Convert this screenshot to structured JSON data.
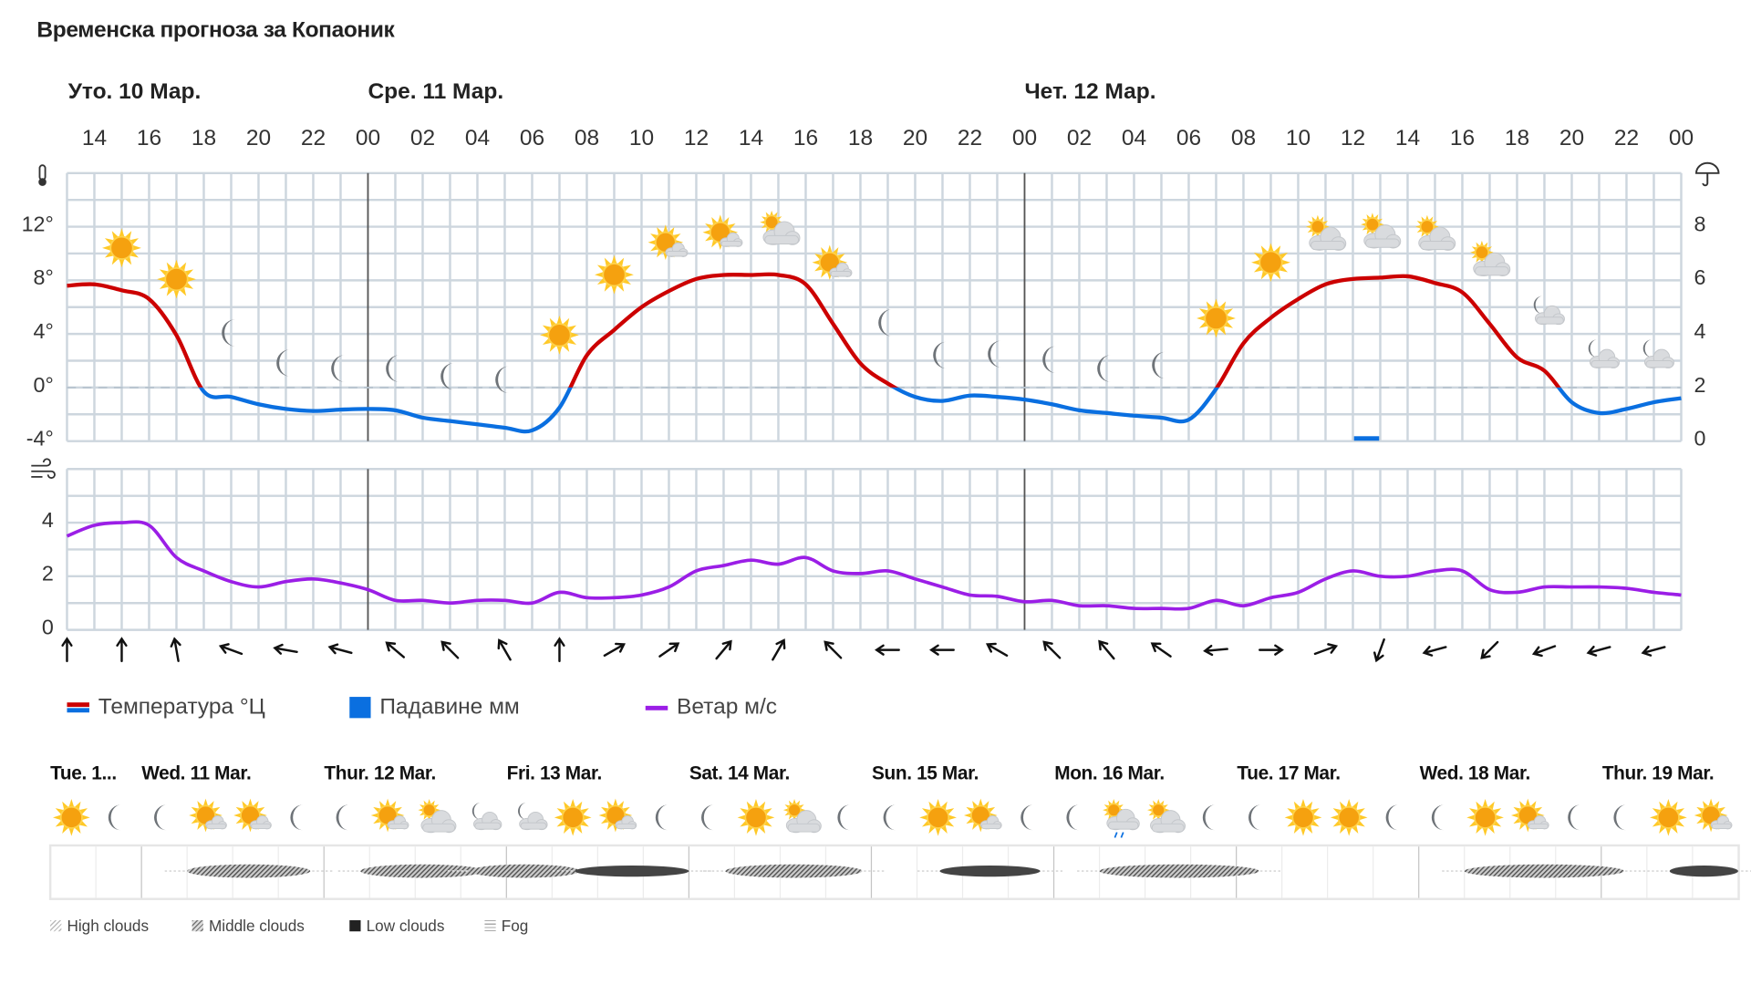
{
  "title": "Временска прогноза за Копаоник",
  "days": [
    {
      "label": "Уто. 10 Мар.",
      "start_hour_index": 0
    },
    {
      "label": "Сре. 11 Мар.",
      "start_hour_index": 11
    },
    {
      "label": "Чет. 12 Мар.",
      "start_hour_index": 35
    }
  ],
  "hour_labels": [
    "14",
    "16",
    "18",
    "20",
    "22",
    "00",
    "02",
    "04",
    "06",
    "08",
    "10",
    "12",
    "14",
    "16",
    "18",
    "20",
    "22",
    "00",
    "02",
    "04",
    "06",
    "08",
    "10",
    "12",
    "14",
    "16",
    "18",
    "20",
    "22",
    "00"
  ],
  "temp_axis": {
    "labels": [
      "12°",
      "8°",
      "4°",
      "0°",
      "-4°"
    ],
    "values": [
      12,
      8,
      4,
      0,
      -4
    ],
    "range": [
      -4,
      16
    ],
    "icon": "thermometer-icon"
  },
  "precip_axis": {
    "labels": [
      "8",
      "6",
      "4",
      "2",
      "0"
    ],
    "values": [
      8,
      6,
      4,
      2,
      0
    ],
    "range": [
      0,
      10
    ],
    "icon": "umbrella-icon"
  },
  "wind_axis": {
    "labels": [
      "4",
      "2",
      "0"
    ],
    "values": [
      4,
      2,
      0
    ],
    "range": [
      0,
      6
    ],
    "icon": "wind-icon"
  },
  "colors": {
    "temp_positive": "#cc0000",
    "temp_negative": "#0a6fe0",
    "precip": "#0a6fe0",
    "wind": "#9b1ee6",
    "grid": "#cdd6de",
    "day_line": "#555555"
  },
  "chart_data": {
    "type": "line",
    "x_start": "Уто. 10 Мар. 13:00",
    "x_step_hours": 1,
    "temperature_c": [
      7.6,
      7.7,
      7.25,
      6.6,
      3.9,
      -0.3,
      -0.7,
      -1.25,
      -1.6,
      -1.75,
      -1.65,
      -1.6,
      -1.7,
      -2.25,
      -2.5,
      -2.75,
      -3.0,
      -3.2,
      -1.5,
      2.4,
      4.3,
      6.0,
      7.2,
      8.1,
      8.4,
      8.4,
      8.4,
      7.7,
      4.75,
      1.8,
      0.3,
      -0.7,
      -1.0,
      -0.6,
      -0.7,
      -0.9,
      -1.25,
      -1.7,
      -1.9,
      -2.1,
      -2.25,
      -2.4,
      -0.1,
      3.3,
      5.2,
      6.6,
      7.7,
      8.1,
      8.2,
      8.3,
      7.8,
      7.1,
      4.75,
      2.25,
      1.25,
      -1.1,
      -1.9,
      -1.6,
      -1.1,
      -0.8
    ],
    "wind_ms": [
      3.5,
      3.9,
      4.0,
      3.9,
      2.7,
      2.2,
      1.8,
      1.6,
      1.8,
      1.9,
      1.75,
      1.5,
      1.1,
      1.1,
      1.0,
      1.1,
      1.1,
      1.0,
      1.4,
      1.2,
      1.2,
      1.3,
      1.6,
      2.2,
      2.4,
      2.6,
      2.45,
      2.7,
      2.2,
      2.1,
      2.2,
      1.9,
      1.6,
      1.3,
      1.25,
      1.05,
      1.1,
      0.9,
      0.9,
      0.8,
      0.8,
      0.8,
      1.1,
      0.9,
      1.2,
      1.4,
      1.9,
      2.2,
      2.0,
      2.0,
      2.2,
      2.2,
      1.5,
      1.4,
      1.6,
      1.6,
      1.6,
      1.55,
      1.4,
      1.3
    ],
    "precip_mm": [
      {
        "hour_index": 47,
        "value": 0.1
      }
    ]
  },
  "weather_icons": [
    {
      "hour_index": 2,
      "type": "sun",
      "temp": 10.4
    },
    {
      "hour_index": 4,
      "type": "sun",
      "temp": 8.1
    },
    {
      "hour_index": 6,
      "type": "moon",
      "temp": 4.1
    },
    {
      "hour_index": 8,
      "type": "moon",
      "temp": 1.8
    },
    {
      "hour_index": 10,
      "type": "moon",
      "temp": 1.4
    },
    {
      "hour_index": 12,
      "type": "moon",
      "temp": 1.4
    },
    {
      "hour_index": 14,
      "type": "moon",
      "temp": 0.8
    },
    {
      "hour_index": 16,
      "type": "moon",
      "temp": 0.6
    },
    {
      "hour_index": 18,
      "type": "sun",
      "temp": 3.9
    },
    {
      "hour_index": 20,
      "type": "sun",
      "temp": 8.4
    },
    {
      "hour_index": 22,
      "type": "sun-cloud",
      "temp": 10.7
    },
    {
      "hour_index": 24,
      "type": "sun-cloud",
      "temp": 11.4
    },
    {
      "hour_index": 26,
      "type": "sun-big-cloud",
      "temp": 11.7
    },
    {
      "hour_index": 28,
      "type": "sun-cloud",
      "temp": 9.2
    },
    {
      "hour_index": 30,
      "type": "moon",
      "temp": 4.8
    },
    {
      "hour_index": 32,
      "type": "moon",
      "temp": 2.4
    },
    {
      "hour_index": 34,
      "type": "moon",
      "temp": 2.5
    },
    {
      "hour_index": 36,
      "type": "moon",
      "temp": 2.1
    },
    {
      "hour_index": 38,
      "type": "moon",
      "temp": 1.4
    },
    {
      "hour_index": 40,
      "type": "moon",
      "temp": 1.7
    },
    {
      "hour_index": 42,
      "type": "sun",
      "temp": 5.2
    },
    {
      "hour_index": 44,
      "type": "sun",
      "temp": 9.3
    },
    {
      "hour_index": 46,
      "type": "cloud-sun",
      "temp": 11.4
    },
    {
      "hour_index": 48,
      "type": "cloud-sun",
      "temp": 11.6
    },
    {
      "hour_index": 50,
      "type": "cloud-sun",
      "temp": 11.4
    },
    {
      "hour_index": 52,
      "type": "cloud-sun",
      "temp": 9.5
    },
    {
      "hour_index": 54,
      "type": "moon-cloud",
      "temp": 5.7
    },
    {
      "hour_index": 56,
      "type": "moon-cloud",
      "temp": 2.4
    },
    {
      "hour_index": 58,
      "type": "moon-cloud",
      "temp": 2.4
    }
  ],
  "wind_directions_deg": [
    0,
    0,
    -10,
    -70,
    -80,
    -75,
    -50,
    -45,
    -30,
    0,
    60,
    55,
    40,
    30,
    -45,
    -90,
    -90,
    -60,
    -45,
    -40,
    -55,
    -95,
    90,
    70,
    200,
    -105,
    -135,
    -110,
    -105,
    -105
  ],
  "legend": {
    "temperature": "Температура °Ц",
    "precipitation": "Падавине мм",
    "wind": "Ветар м/с"
  },
  "forecast_10day": {
    "days": [
      "Tue. 1...",
      "Wed. 11 Mar.",
      "Thur. 12 Mar.",
      "Fri. 13 Mar.",
      "Sat. 14 Mar.",
      "Sun. 15 Mar.",
      "Mon. 16 Mar.",
      "Tue. 17 Mar.",
      "Wed. 18 Mar.",
      "Thur. 19 Mar."
    ],
    "icons": [
      "sun",
      "moon",
      "moon",
      "sun-cloud",
      "sun-cloud",
      "moon",
      "moon",
      "sun-cloud",
      "cloud-sun",
      "moon-cloud",
      "moon-cloud",
      "sun",
      "sun-cloud",
      "moon",
      "moon",
      "sun",
      "cloud-sun",
      "moon",
      "moon",
      "sun",
      "sun-cloud",
      "moon",
      "moon",
      "cloud-sun-rain",
      "cloud-sun",
      "moon",
      "moon",
      "sun",
      "sun",
      "moon",
      "moon",
      "sun",
      "sun-cloud",
      "moon",
      "moon",
      "sun",
      "sun-cloud"
    ],
    "cloud_layers": [
      {
        "from_slot": 3.0,
        "to_slot": 5.7,
        "type": "middle"
      },
      {
        "from_slot": 6.8,
        "to_slot": 9.5,
        "type": "middle"
      },
      {
        "from_slot": 9.2,
        "to_slot": 11.6,
        "type": "middle"
      },
      {
        "from_slot": 11.5,
        "to_slot": 14.0,
        "type": "low"
      },
      {
        "from_slot": 14.8,
        "to_slot": 17.8,
        "type": "middle"
      },
      {
        "from_slot": 19.5,
        "to_slot": 21.7,
        "type": "low"
      },
      {
        "from_slot": 23.0,
        "to_slot": 26.5,
        "type": "middle"
      },
      {
        "from_slot": 31.0,
        "to_slot": 34.5,
        "type": "middle"
      },
      {
        "from_slot": 35.5,
        "to_slot": 37.0,
        "type": "low"
      }
    ],
    "legend": [
      "High clouds",
      "Middle clouds",
      "Low clouds",
      "Fog"
    ]
  }
}
